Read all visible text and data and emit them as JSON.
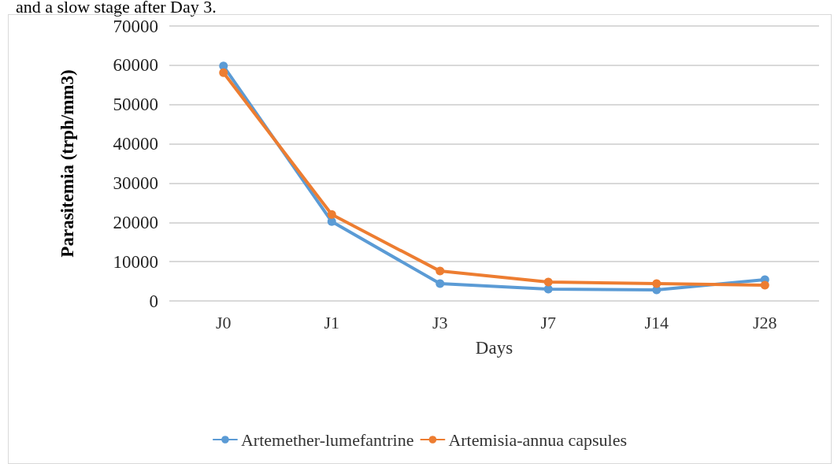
{
  "chart_data": {
    "type": "line",
    "xlabel": "Days",
    "ylabel": "Parasitemia (trph/mm3)",
    "annotations": [
      "and a slow stage after Day 3."
    ],
    "categories": [
      "J0",
      "J1",
      "J3",
      "J7",
      "J14",
      "J28"
    ],
    "series": [
      {
        "name": "Artemether-lumefantrine",
        "color": "#5b9bd5",
        "values": [
          59800,
          20200,
          4400,
          3000,
          2800,
          5400
        ]
      },
      {
        "name": "Artemisia-annua capsules",
        "color": "#ed7d31",
        "values": [
          58100,
          22000,
          7600,
          4800,
          4400,
          4000
        ]
      }
    ],
    "ylim": [
      0,
      70000
    ],
    "yticks": [
      0,
      10000,
      20000,
      30000,
      40000,
      50000,
      60000,
      70000
    ],
    "grid": "y",
    "legend": "bottom",
    "marker": "circle",
    "line_style": "solid"
  }
}
